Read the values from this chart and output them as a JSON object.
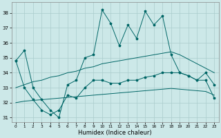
{
  "title": "",
  "xlabel": "Humidex (Indice chaleur)",
  "bg_color": "#cce8e8",
  "grid_color": "#aacccc",
  "line_color": "#006666",
  "xlim": [
    -0.5,
    23.5
  ],
  "ylim": [
    30.7,
    38.7
  ],
  "yticks": [
    31,
    32,
    33,
    34,
    35,
    36,
    37,
    38
  ],
  "xticks": [
    0,
    1,
    2,
    3,
    4,
    5,
    6,
    7,
    8,
    9,
    10,
    11,
    12,
    13,
    14,
    15,
    16,
    17,
    18,
    19,
    20,
    21,
    22,
    23
  ],
  "series_spike": [
    34.8,
    35.5,
    33.0,
    32.2,
    31.5,
    31.0,
    33.2,
    33.5,
    35.0,
    35.2,
    38.2,
    37.3,
    35.8,
    37.2,
    36.3,
    38.1,
    37.2,
    37.8,
    35.2,
    34.0,
    33.8,
    33.5,
    34.0,
    33.2
  ],
  "series_upper": [
    33.0,
    33.2,
    33.4,
    33.5,
    33.7,
    33.8,
    34.0,
    34.1,
    34.3,
    34.4,
    34.6,
    34.7,
    34.8,
    34.9,
    35.0,
    35.1,
    35.2,
    35.3,
    35.4,
    35.2,
    34.9,
    34.6,
    34.3,
    34.0
  ],
  "series_lower": [
    32.0,
    32.1,
    32.15,
    32.2,
    32.25,
    32.3,
    32.35,
    32.4,
    32.45,
    32.5,
    32.55,
    32.6,
    32.65,
    32.7,
    32.75,
    32.8,
    32.85,
    32.9,
    32.95,
    32.9,
    32.85,
    32.8,
    32.75,
    32.5
  ],
  "series_mid": [
    34.8,
    33.0,
    32.2,
    31.5,
    31.2,
    31.5,
    32.5,
    32.3,
    33.0,
    33.5,
    33.5,
    33.3,
    33.3,
    33.5,
    33.5,
    33.7,
    33.8,
    34.0,
    34.0,
    34.0,
    33.8,
    33.5,
    33.5,
    32.3
  ]
}
